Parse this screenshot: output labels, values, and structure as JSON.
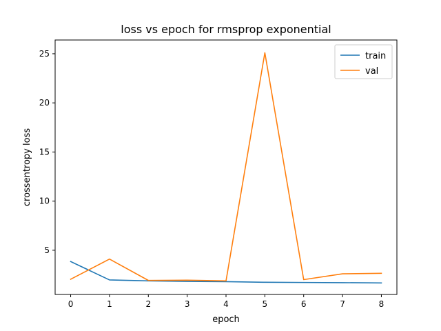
{
  "chart_data": {
    "type": "line",
    "title": "loss vs epoch for rmsprop exponential",
    "xlabel": "epoch",
    "ylabel": "crossentropy loss",
    "x": [
      0,
      1,
      2,
      3,
      4,
      5,
      6,
      7,
      8
    ],
    "xticks": [
      "0",
      "1",
      "2",
      "3",
      "4",
      "5",
      "6",
      "7",
      "8"
    ],
    "yticks": [
      "5",
      "10",
      "15",
      "20",
      "25"
    ],
    "xlim": [
      -0.4,
      8.4
    ],
    "ylim": [
      0.5,
      26.4
    ],
    "grid": false,
    "legend_position": "top-right",
    "series": [
      {
        "name": "train",
        "color": "#1f77b4",
        "values": [
          3.85,
          1.98,
          1.88,
          1.83,
          1.8,
          1.74,
          1.72,
          1.7,
          1.67
        ]
      },
      {
        "name": "val",
        "color": "#ff7f0e",
        "values": [
          2.05,
          4.1,
          1.93,
          1.95,
          1.88,
          25.1,
          2.01,
          2.6,
          2.65
        ]
      }
    ]
  }
}
